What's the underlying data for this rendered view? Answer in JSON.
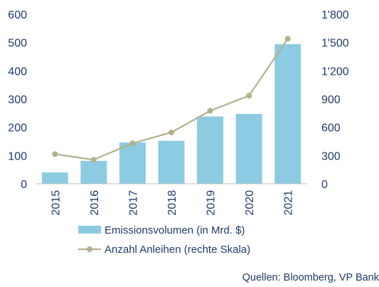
{
  "chart_data": {
    "type": "bar",
    "categories": [
      "2015",
      "2016",
      "2017",
      "2018",
      "2019",
      "2020",
      "2021"
    ],
    "series": [
      {
        "name": "Emissionsvolumen (in Mrd. $)",
        "type": "bar",
        "axis": "left",
        "values": [
          40,
          81,
          146,
          152,
          238,
          247,
          494
        ]
      },
      {
        "name": "Anzahl Anleihen (rechte Skala)",
        "type": "line",
        "axis": "right",
        "values": [
          315,
          255,
          430,
          545,
          775,
          935,
          1540
        ]
      }
    ],
    "ylim": [
      0,
      600
    ],
    "y2lim": [
      0,
      1800
    ],
    "yticks": [
      "0",
      "100",
      "200",
      "300",
      "400",
      "500",
      "600"
    ],
    "y2ticks": [
      "0",
      "300",
      "600",
      "900",
      "1'200",
      "1'500",
      "1'800"
    ],
    "grid": false,
    "legend_position": "bottom",
    "colors": {
      "bar": "#8dcbe2",
      "line": "#b3b18c",
      "axis_text": "#1f3b6b",
      "axis_line": "#bfbfbf",
      "source_text": "#1f3b6b"
    }
  },
  "source_note": "Quellen: Bloomberg, VP Bank"
}
